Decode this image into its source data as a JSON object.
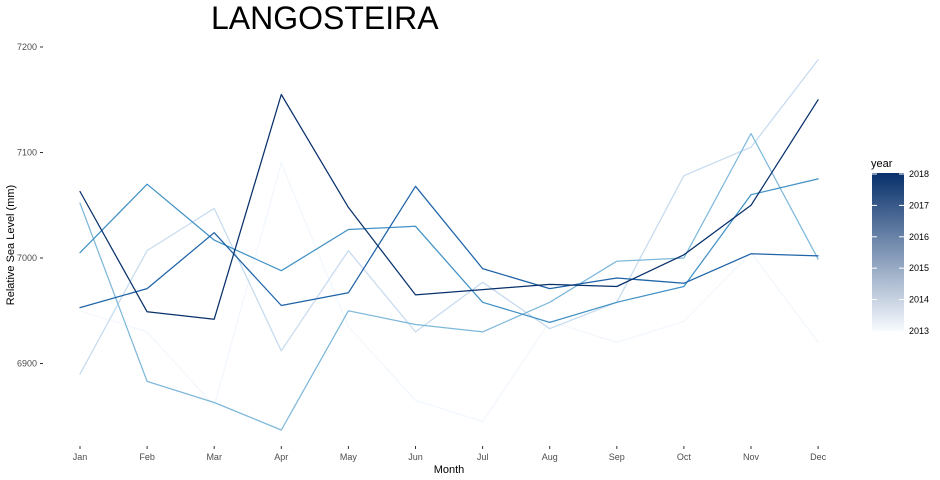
{
  "chart_data": {
    "type": "line",
    "title": "LANGOSTEIRA",
    "xlabel": "Month",
    "ylabel": "Relative Sea Level (mm)",
    "categories": [
      "Jan",
      "Feb",
      "Mar",
      "Apr",
      "May",
      "Jun",
      "Jul",
      "Aug",
      "Sep",
      "Oct",
      "Nov",
      "Dec"
    ],
    "yticks": [
      6900,
      7000,
      7100,
      7200
    ],
    "ylim": [
      6824,
      7204
    ],
    "grid": false,
    "legend": {
      "title": "year",
      "position": "right",
      "type": "colorbar",
      "min": 2013,
      "max": 2018,
      "labels": [
        "2018",
        "2017",
        "2016",
        "2015",
        "2014",
        "2013"
      ],
      "color_low": "#f7fbff",
      "color_high": "#08306b"
    },
    "series": [
      {
        "year": 2013,
        "color": "#f2f7fd",
        "values": [
          6950,
          6930,
          6860,
          7090,
          6935,
          6865,
          6845,
          6940,
          6920,
          6940,
          7005,
          6920
        ]
      },
      {
        "year": 2014,
        "color": "#c6dbef",
        "values": [
          6890,
          7007,
          7047,
          6912,
          7007,
          6930,
          6977,
          6933,
          6958,
          7078,
          7105,
          7188
        ]
      },
      {
        "year": 2015,
        "color": "#7db8da",
        "values": [
          7052,
          6883,
          6863,
          6837,
          6950,
          6937,
          6930,
          6958,
          6997,
          7000,
          7118,
          6999
        ]
      },
      {
        "year": 2016,
        "color": "#4292c6",
        "values": [
          7005,
          7070,
          7017,
          6988,
          7027,
          7030,
          6958,
          6939,
          6958,
          6973,
          7060,
          7075
        ]
      },
      {
        "year": 2017,
        "color": "#1e63a8",
        "values": [
          6953,
          6971,
          7024,
          6955,
          6967,
          7068,
          6990,
          6971,
          6981,
          6976,
          7004,
          7002
        ]
      },
      {
        "year": 2018,
        "color": "#08306b",
        "values": [
          7063,
          6949,
          6942,
          7155,
          7048,
          6965,
          6970,
          6975,
          6973,
          7003,
          7050,
          7150
        ]
      }
    ]
  }
}
